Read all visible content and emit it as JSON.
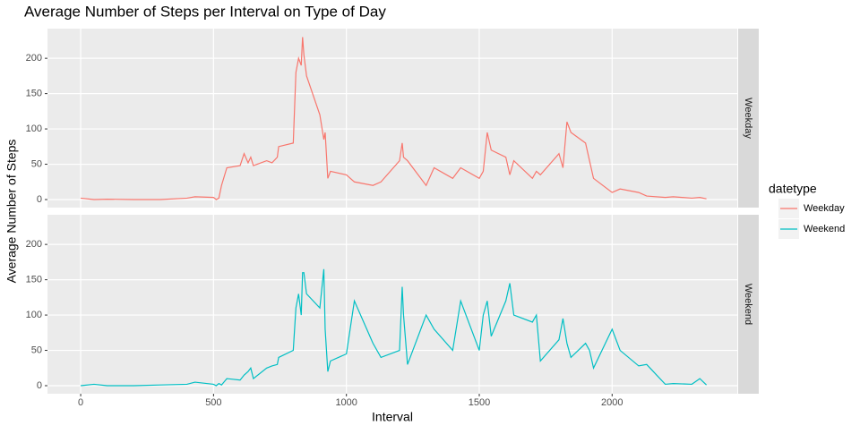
{
  "chart_data": {
    "type": "line",
    "title": "Average Number of Steps per Interval on Type of Day",
    "x_label": "Interval",
    "y_label": "Average Number of Steps",
    "legend_title": "datetype",
    "legend_position": "right",
    "grid": true,
    "x": [
      0,
      50,
      100,
      200,
      300,
      400,
      430,
      500,
      510,
      520,
      530,
      550,
      600,
      615,
      630,
      640,
      650,
      700,
      720,
      740,
      745,
      800,
      810,
      820,
      830,
      835,
      840,
      850,
      900,
      915,
      920,
      930,
      940,
      1000,
      1030,
      1100,
      1130,
      1200,
      1210,
      1215,
      1230,
      1300,
      1330,
      1400,
      1430,
      1500,
      1515,
      1530,
      1545,
      1600,
      1615,
      1630,
      1700,
      1715,
      1730,
      1800,
      1815,
      1830,
      1845,
      1900,
      1915,
      1930,
      2000,
      2030,
      2100,
      2130,
      2200,
      2230,
      2300,
      2330,
      2355
    ],
    "series": [
      {
        "name": "Weekday",
        "color": "#F8766D",
        "values": [
          2,
          0,
          0.5,
          0,
          0,
          2,
          4,
          3,
          0,
          2,
          20,
          45,
          48,
          65,
          52,
          60,
          48,
          55,
          52,
          60,
          75,
          80,
          180,
          200,
          190,
          230,
          205,
          175,
          120,
          85,
          95,
          30,
          40,
          35,
          25,
          20,
          25,
          55,
          80,
          60,
          55,
          20,
          45,
          30,
          45,
          30,
          40,
          95,
          70,
          60,
          35,
          55,
          30,
          40,
          35,
          65,
          45,
          110,
          95,
          80,
          55,
          30,
          10,
          15,
          10,
          5,
          3,
          4,
          2,
          3,
          1
        ]
      },
      {
        "name": "Weekend",
        "color": "#00BFC4",
        "values": [
          0,
          2,
          0,
          0,
          1,
          2,
          5,
          2,
          0,
          3,
          1,
          10,
          8,
          15,
          20,
          25,
          10,
          25,
          28,
          30,
          40,
          50,
          110,
          130,
          100,
          160,
          160,
          130,
          110,
          165,
          80,
          20,
          35,
          45,
          120,
          60,
          40,
          50,
          140,
          100,
          30,
          100,
          80,
          50,
          120,
          50,
          100,
          120,
          70,
          120,
          145,
          100,
          90,
          100,
          35,
          65,
          95,
          60,
          40,
          60,
          50,
          25,
          80,
          50,
          28,
          30,
          2,
          3,
          2,
          10,
          1
        ]
      }
    ],
    "xlim": [
      -125,
      2471
    ],
    "xticks": [
      0,
      500,
      1000,
      1500,
      2000
    ],
    "ylim": [
      -11.4,
      242
    ],
    "yticks": [
      0,
      50,
      100,
      150,
      200
    ]
  }
}
